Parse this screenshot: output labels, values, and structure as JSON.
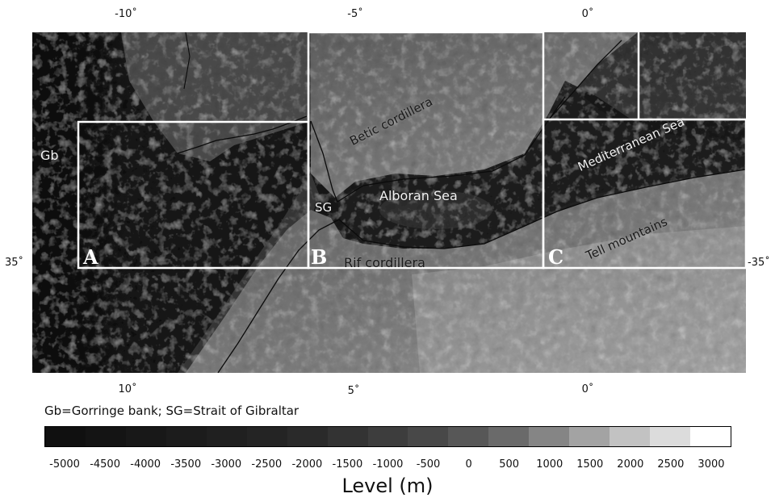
{
  "axes": {
    "top_lon_labels": [
      "-10˚",
      "-5˚",
      "0˚"
    ],
    "bottom_lon_labels": [
      "10˚",
      "5˚",
      "0˚"
    ],
    "lat_left": "35˚",
    "lat_right": "-35˚"
  },
  "regions": [
    {
      "letter": "A"
    },
    {
      "letter": "B"
    },
    {
      "letter": "C"
    }
  ],
  "map_labels": {
    "gb": "Gb",
    "sg": "SG",
    "betic": "Betic cordillera",
    "alboran": "Alboran Sea",
    "rif": "Rif cordillera",
    "mediterranean": "Mediterranean Sea",
    "tell": "Tell mountains"
  },
  "legend": {
    "abbreviations": "Gb=Gorringe bank; SG=Strait of Gibraltar",
    "ticks": [
      "-5000",
      "-4500",
      "-4000",
      "-3500",
      "-3000",
      "-2500",
      "-2000",
      "-1500",
      "-1000",
      "-500",
      "0",
      "500",
      "1000",
      "1500",
      "2000",
      "2500",
      "3000"
    ],
    "unit": "Level (m)",
    "colors": [
      "#101010",
      "#141414",
      "#181818",
      "#1c1c1c",
      "#202020",
      "#242424",
      "#2a2a2a",
      "#333333",
      "#3d3d3d",
      "#484848",
      "#575757",
      "#6a6a6a",
      "#858585",
      "#a3a3a3",
      "#c2c2c2",
      "#dcdcdc",
      "#ffffff"
    ]
  }
}
